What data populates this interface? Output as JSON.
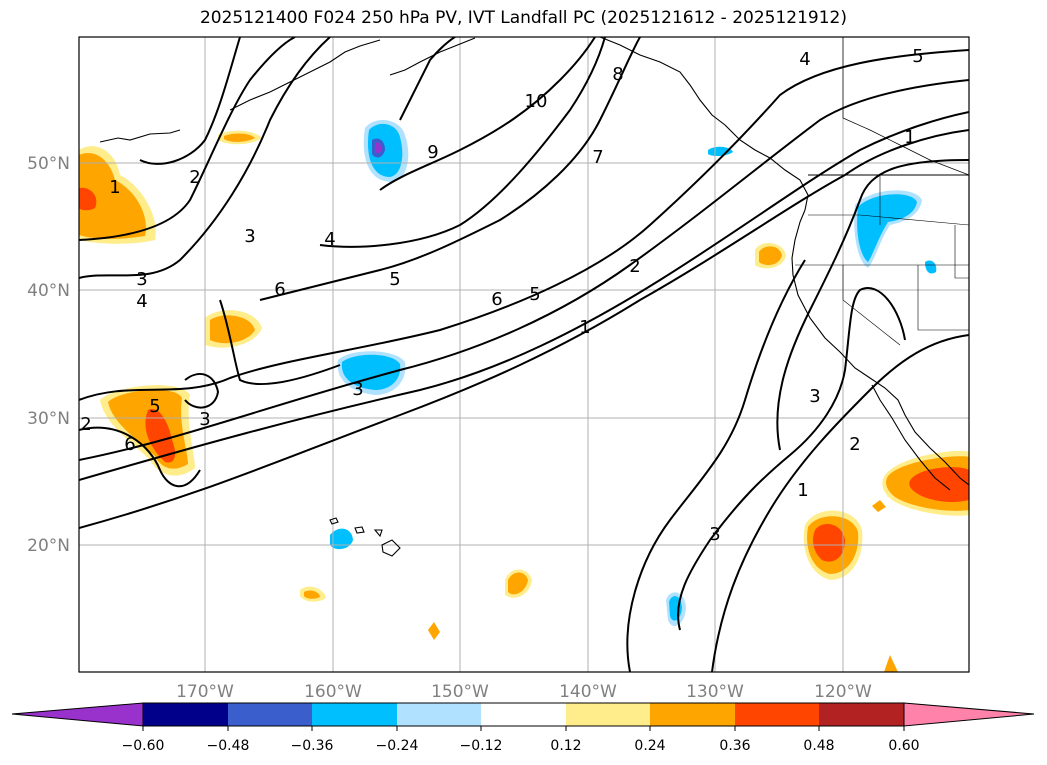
{
  "title": "2025121400 F024 250 hPa PV, IVT Landfall PC (2025121612 - 2025121912)",
  "map": {
    "lat_labels": [
      "50°N",
      "40°N",
      "30°N",
      "20°N"
    ],
    "lon_labels": [
      "170°W",
      "160°W",
      "150°W",
      "140°W",
      "130°W",
      "120°W"
    ],
    "grid": true,
    "colors": {
      "grid": "#b0b0b0",
      "axis_label": "#808080",
      "coast": "#000000",
      "contour": "#000000"
    }
  },
  "contour_labels": [
    "1",
    "2",
    "3",
    "4",
    "5",
    "6",
    "7",
    "8",
    "9",
    "10",
    "1",
    "2",
    "3",
    "4",
    "5",
    "1",
    "2",
    "3",
    "5",
    "6",
    "1",
    "2",
    "3",
    "5",
    "6",
    "3",
    "3",
    "4"
  ],
  "colorbar": {
    "ticks": [
      "−0.60",
      "−0.48",
      "−0.36",
      "−0.24",
      "−0.12",
      "0.12",
      "0.24",
      "0.36",
      "0.48",
      "0.60"
    ],
    "colors": [
      "#9932cc",
      "#00008b",
      "#3a5fcd",
      "#00bfff",
      "#b0e2ff",
      "#ffffff",
      "#ffec8b",
      "#ffa500",
      "#ff4500",
      "#b22222",
      "#ff82ab"
    ]
  }
}
